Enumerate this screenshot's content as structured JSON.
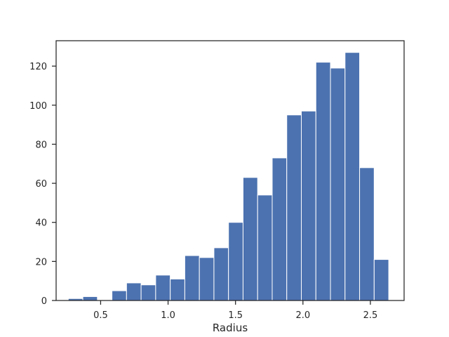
{
  "chart_data": {
    "type": "bar",
    "subtype": "histogram",
    "title": "",
    "xlabel": "Radius",
    "ylabel": "",
    "xlim": [
      0.17,
      2.75
    ],
    "ylim": [
      0,
      133
    ],
    "xticks": [
      0.5,
      1.0,
      1.5,
      2.0,
      2.5
    ],
    "xtick_labels": [
      "0.5",
      "1.0",
      "1.5",
      "2.0",
      "2.5"
    ],
    "yticks": [
      0,
      20,
      40,
      60,
      80,
      100,
      120
    ],
    "ytick_labels": [
      "0",
      "20",
      "40",
      "60",
      "80",
      "100",
      "120"
    ],
    "grid": false,
    "legend": "none",
    "bar_color": "#4c72b0",
    "bar_edge_color": "#ffffff",
    "axis_color": "#262626",
    "bin_edges": [
      0.26,
      0.368,
      0.476,
      0.584,
      0.692,
      0.8,
      0.908,
      1.016,
      1.124,
      1.232,
      1.34,
      1.448,
      1.556,
      1.664,
      1.772,
      1.88,
      1.988,
      2.096,
      2.204,
      2.312,
      2.42,
      2.528,
      2.636
    ],
    "counts": [
      1,
      2,
      0,
      5,
      9,
      8,
      13,
      11,
      23,
      22,
      27,
      40,
      63,
      54,
      73,
      95,
      97,
      122,
      119,
      127,
      68,
      21
    ]
  }
}
